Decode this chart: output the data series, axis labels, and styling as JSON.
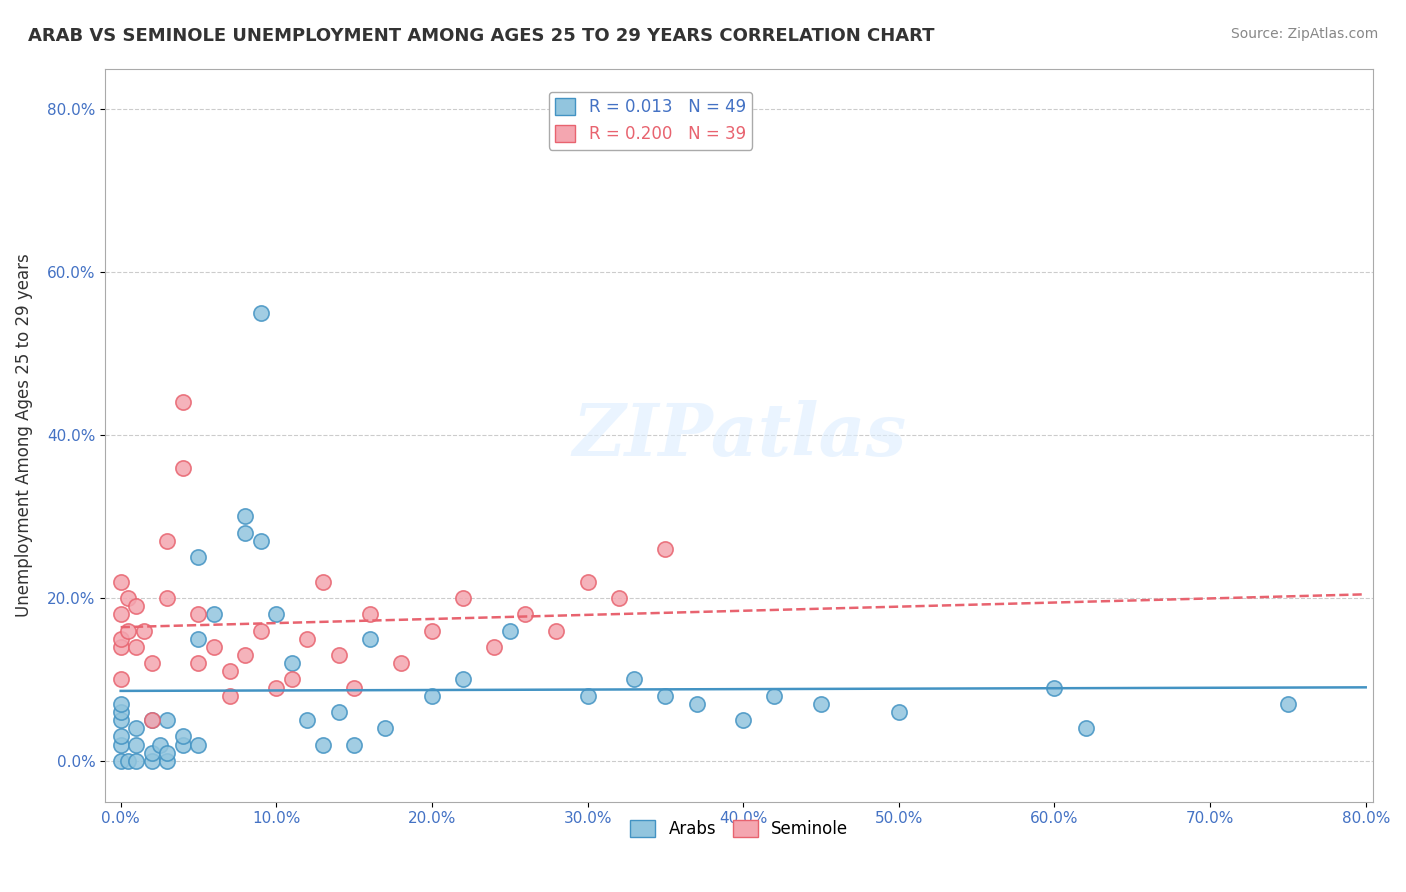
{
  "title": "ARAB VS SEMINOLE UNEMPLOYMENT AMONG AGES 25 TO 29 YEARS CORRELATION CHART",
  "source": "Source: ZipAtlas.com",
  "xlabel_ticks": [
    "0.0%",
    "10.0%",
    "20.0%",
    "30.0%",
    "40.0%",
    "50.0%",
    "60.0%",
    "70.0%",
    "80.0%"
  ],
  "ylabel": "Unemployment Among Ages 25 to 29 years",
  "ylabel_ticks": [
    "0.0%",
    "20.0%",
    "40.0%",
    "60.0%",
    "80.0%"
  ],
  "xmin": 0.0,
  "xmax": 0.8,
  "ymin": -0.05,
  "ymax": 0.85,
  "arab_R": "0.013",
  "arab_N": "49",
  "seminole_R": "0.200",
  "seminole_N": "39",
  "arab_color": "#92C5DE",
  "seminole_color": "#F4A6B0",
  "arab_line_color": "#4393C3",
  "seminole_line_color": "#E8636F",
  "legend_box_color": "#DDEEFF",
  "watermark": "ZIPatlas",
  "arab_x": [
    0.0,
    0.0,
    0.0,
    0.0,
    0.0,
    0.0,
    0.005,
    0.01,
    0.01,
    0.01,
    0.02,
    0.02,
    0.02,
    0.025,
    0.03,
    0.03,
    0.03,
    0.04,
    0.04,
    0.05,
    0.05,
    0.05,
    0.06,
    0.08,
    0.08,
    0.09,
    0.09,
    0.1,
    0.11,
    0.12,
    0.13,
    0.14,
    0.15,
    0.16,
    0.17,
    0.2,
    0.22,
    0.25,
    0.3,
    0.33,
    0.35,
    0.37,
    0.4,
    0.42,
    0.45,
    0.5,
    0.6,
    0.62,
    0.75
  ],
  "arab_y": [
    0.0,
    0.02,
    0.03,
    0.05,
    0.06,
    0.07,
    0.0,
    0.0,
    0.02,
    0.04,
    0.0,
    0.01,
    0.05,
    0.02,
    0.0,
    0.01,
    0.05,
    0.02,
    0.03,
    0.02,
    0.15,
    0.25,
    0.18,
    0.28,
    0.3,
    0.27,
    0.55,
    0.18,
    0.12,
    0.05,
    0.02,
    0.06,
    0.02,
    0.15,
    0.04,
    0.08,
    0.1,
    0.16,
    0.08,
    0.1,
    0.08,
    0.07,
    0.05,
    0.08,
    0.07,
    0.06,
    0.09,
    0.04,
    0.07
  ],
  "seminole_x": [
    0.0,
    0.0,
    0.0,
    0.0,
    0.0,
    0.005,
    0.005,
    0.01,
    0.01,
    0.015,
    0.02,
    0.02,
    0.03,
    0.03,
    0.04,
    0.04,
    0.05,
    0.05,
    0.06,
    0.07,
    0.07,
    0.08,
    0.09,
    0.1,
    0.11,
    0.12,
    0.13,
    0.14,
    0.15,
    0.16,
    0.18,
    0.2,
    0.22,
    0.24,
    0.26,
    0.28,
    0.3,
    0.32,
    0.35
  ],
  "seminole_y": [
    0.1,
    0.14,
    0.15,
    0.18,
    0.22,
    0.16,
    0.2,
    0.14,
    0.19,
    0.16,
    0.05,
    0.12,
    0.2,
    0.27,
    0.36,
    0.44,
    0.12,
    0.18,
    0.14,
    0.08,
    0.11,
    0.13,
    0.16,
    0.09,
    0.1,
    0.15,
    0.22,
    0.13,
    0.09,
    0.18,
    0.12,
    0.16,
    0.2,
    0.14,
    0.18,
    0.16,
    0.22,
    0.2,
    0.26
  ]
}
